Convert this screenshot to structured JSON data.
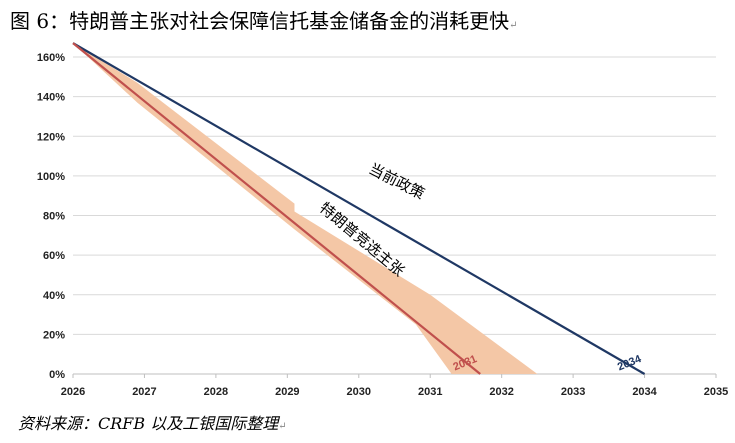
{
  "title": "图 6：特朗普主张对社会保障信托基金储备金的消耗更快",
  "source": "资料来源：CRFB 以及工银国际整理",
  "chart_data": {
    "type": "line",
    "title": "",
    "xlabel": "",
    "ylabel": "",
    "xlim": [
      2026,
      2035
    ],
    "ylim": [
      0,
      160
    ],
    "x_ticks": [
      "2026",
      "2027",
      "2028",
      "2029",
      "2030",
      "2031",
      "2032",
      "2033",
      "2034",
      "2035"
    ],
    "y_ticks": [
      "0%",
      "20%",
      "40%",
      "60%",
      "80%",
      "100%",
      "120%",
      "140%",
      "160%"
    ],
    "grid": true,
    "series": [
      {
        "name": "当前政策",
        "color": "#1f3864",
        "x": [
          2026,
          2034
        ],
        "y": [
          167,
          0
        ],
        "end_label": "2034"
      },
      {
        "name": "特朗普竞选主张",
        "color": "#c0504d",
        "x": [
          2026,
          2031.7
        ],
        "y": [
          167,
          0
        ],
        "end_label": "2031"
      }
    ],
    "range_band": {
      "color": "#f4c7a6",
      "upper": {
        "x": [
          2026,
          2026.9,
          2029.1,
          2029.1,
          2031.0,
          2032.5
        ],
        "y": [
          167,
          147,
          86,
          82,
          40,
          0
        ]
      },
      "lower": {
        "x": [
          2026,
          2026.9,
          2029.1,
          2029.1,
          2030.8,
          2031.3
        ],
        "y": [
          167,
          137,
          73,
          73,
          25,
          0
        ]
      }
    }
  }
}
